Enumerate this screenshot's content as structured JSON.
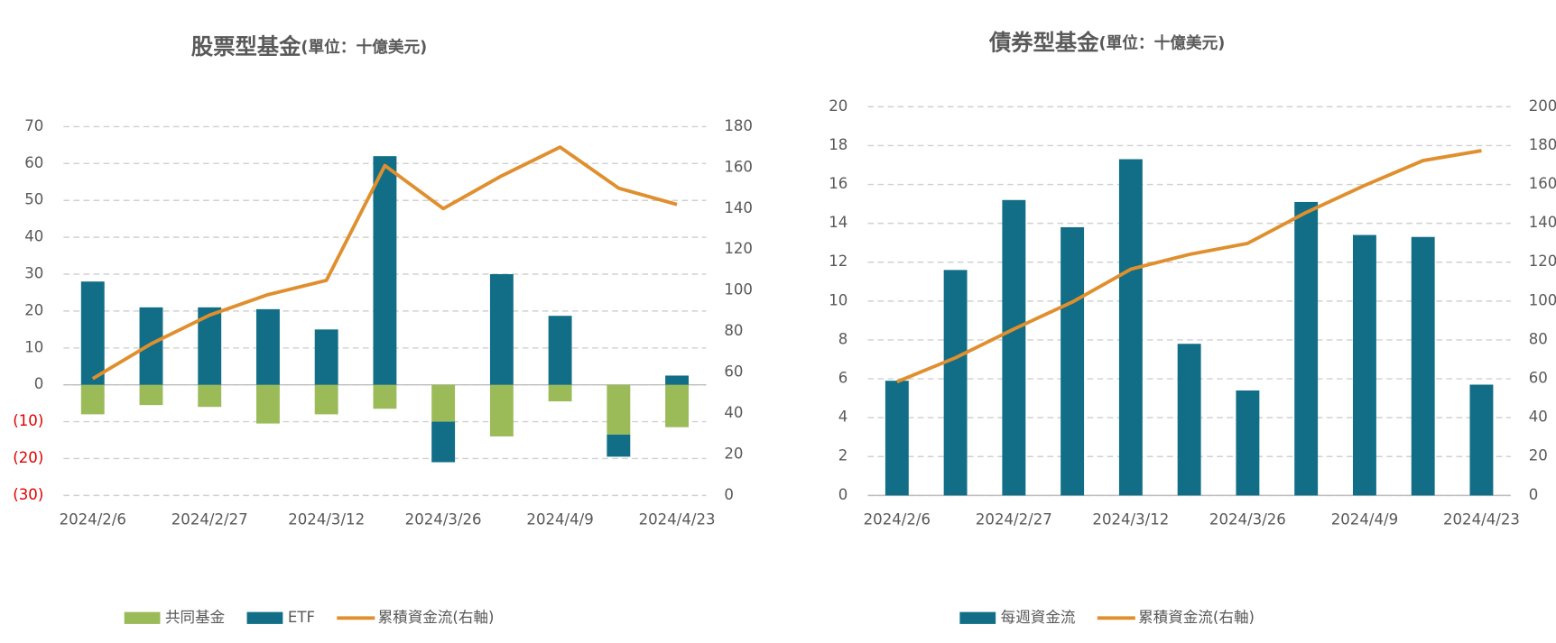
{
  "chart_data": [
    {
      "type": "bar",
      "title": "股票型基金",
      "unit": "(單位：十億美元)",
      "categories": [
        "2024/2/6",
        null,
        "2024/2/27",
        null,
        "2024/3/12",
        null,
        "2024/3/26",
        null,
        "2024/4/9",
        null,
        "2024/4/23"
      ],
      "series": [
        {
          "name": "共同基金",
          "color": "#9bbb59",
          "type": "bar",
          "values": [
            -8,
            -5.5,
            -6,
            -10.5,
            -8,
            -6.5,
            -10,
            -14,
            -4.5,
            -13.5,
            -11.5
          ]
        },
        {
          "name": "ETF",
          "color": "#116e86",
          "type": "bar",
          "values": [
            28,
            21,
            21,
            20.5,
            15,
            62,
            -11,
            30,
            18.7,
            -6,
            2.5
          ]
        },
        {
          "name": "累積資金流(右軸)",
          "color": "#e08f2e",
          "type": "line",
          "axis": "y2",
          "values": [
            57,
            74,
            88,
            98,
            105,
            161,
            140,
            156,
            170,
            150,
            142
          ]
        }
      ],
      "ylim": [
        -30,
        70
      ],
      "yticks": [
        {
          "value": -30,
          "label": "(30)"
        },
        {
          "value": -20,
          "label": "(20)"
        },
        {
          "value": -10,
          "label": "(10)"
        },
        0,
        10,
        20,
        30,
        40,
        50,
        60,
        70
      ],
      "y2lim": [
        0,
        180
      ],
      "y2ticks": [
        0,
        20,
        40,
        60,
        80,
        100,
        120,
        140,
        160,
        180
      ],
      "negative_tick_color": "#e00000",
      "grid": true,
      "legend": "bottom"
    },
    {
      "type": "bar",
      "title": "債券型基金",
      "unit": "(單位：十億美元)",
      "categories": [
        "2024/2/6",
        null,
        "2024/2/27",
        null,
        "2024/3/12",
        null,
        "2024/3/26",
        null,
        "2024/4/9",
        null,
        "2024/4/23"
      ],
      "series": [
        {
          "name": "每週資金流",
          "color": "#116e86",
          "type": "bar",
          "values": [
            5.9,
            11.6,
            15.2,
            13.8,
            17.3,
            7.8,
            5.4,
            15.1,
            13.4,
            13.3,
            5.7
          ]
        },
        {
          "name": "累積資金流(右軸)",
          "color": "#e08f2e",
          "type": "line",
          "axis": "y2",
          "values": [
            58.5,
            70.8,
            85.6,
            99.5,
            116.4,
            124,
            129.7,
            145.6,
            159.5,
            172.3,
            177.4
          ]
        }
      ],
      "ylim": [
        0,
        20
      ],
      "yticks": [
        0,
        2,
        4,
        6,
        8,
        10,
        12,
        14,
        16,
        18,
        20
      ],
      "y2lim": [
        0,
        200
      ],
      "y2ticks": [
        0,
        20,
        40,
        60,
        80,
        100,
        120,
        140,
        160,
        180,
        200
      ],
      "grid": true,
      "legend": "bottom"
    }
  ]
}
